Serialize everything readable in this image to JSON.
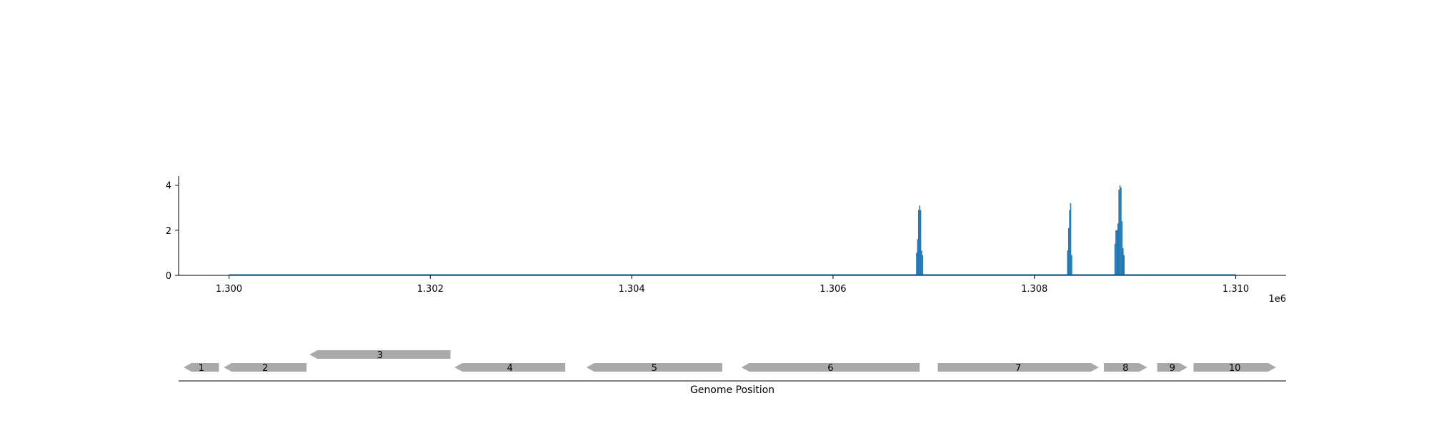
{
  "chart_data": [
    {
      "type": "bar",
      "title": "",
      "xlabel": "",
      "ylabel": "",
      "x_offset_label": "1e6",
      "xlim": [
        1299500,
        1310500
      ],
      "ylim": [
        0,
        4.4
      ],
      "x_ticks": [
        1300000,
        1302000,
        1304000,
        1306000,
        1308000,
        1310000
      ],
      "x_tick_labels": [
        "1.300",
        "1.302",
        "1.304",
        "1.306",
        "1.308",
        "1.310"
      ],
      "y_ticks": [
        0,
        2,
        4
      ],
      "y_tick_labels": [
        "0",
        "2",
        "4"
      ],
      "baseline": [
        1300000,
        1310000
      ],
      "grid": false,
      "color": "#1f77b4",
      "bar_width": 10,
      "bars": [
        {
          "x": 1306830,
          "value": 1.0
        },
        {
          "x": 1306840,
          "value": 1.6
        },
        {
          "x": 1306850,
          "value": 2.9
        },
        {
          "x": 1306860,
          "value": 3.1
        },
        {
          "x": 1306870,
          "value": 2.9
        },
        {
          "x": 1306880,
          "value": 1.1
        },
        {
          "x": 1306890,
          "value": 0.9
        },
        {
          "x": 1308330,
          "value": 1.1
        },
        {
          "x": 1308340,
          "value": 2.1
        },
        {
          "x": 1308350,
          "value": 2.9
        },
        {
          "x": 1308360,
          "value": 3.2
        },
        {
          "x": 1308370,
          "value": 0.9
        },
        {
          "x": 1308800,
          "value": 1.4
        },
        {
          "x": 1308810,
          "value": 2.0
        },
        {
          "x": 1308820,
          "value": 2.0
        },
        {
          "x": 1308830,
          "value": 2.3
        },
        {
          "x": 1308840,
          "value": 3.8
        },
        {
          "x": 1308850,
          "value": 4.0
        },
        {
          "x": 1308860,
          "value": 3.9
        },
        {
          "x": 1308870,
          "value": 2.4
        },
        {
          "x": 1308880,
          "value": 1.2
        },
        {
          "x": 1308890,
          "value": 0.9
        }
      ]
    },
    {
      "type": "gene_track",
      "xlabel": "Genome Position",
      "xlim": [
        1299500,
        1310500
      ],
      "color": "#a9a9a9",
      "genes": [
        {
          "label": "1",
          "start": 1299550,
          "end": 1299900,
          "strand": "-",
          "row": 0
        },
        {
          "label": "2",
          "start": 1299950,
          "end": 1300770,
          "strand": "-",
          "row": 0
        },
        {
          "label": "3",
          "start": 1300800,
          "end": 1302200,
          "strand": "-",
          "row": 1
        },
        {
          "label": "4",
          "start": 1302240,
          "end": 1303340,
          "strand": "-",
          "row": 0
        },
        {
          "label": "5",
          "start": 1303550,
          "end": 1304900,
          "strand": "-",
          "row": 0
        },
        {
          "label": "6",
          "start": 1305090,
          "end": 1306860,
          "strand": "-",
          "row": 0
        },
        {
          "label": "7",
          "start": 1307040,
          "end": 1308640,
          "strand": "+",
          "row": 0
        },
        {
          "label": "8",
          "start": 1308690,
          "end": 1309120,
          "strand": "+",
          "row": 0
        },
        {
          "label": "9",
          "start": 1309220,
          "end": 1309520,
          "strand": "+",
          "row": 0
        },
        {
          "label": "10",
          "start": 1309580,
          "end": 1310400,
          "strand": "+",
          "row": 0
        }
      ]
    }
  ]
}
